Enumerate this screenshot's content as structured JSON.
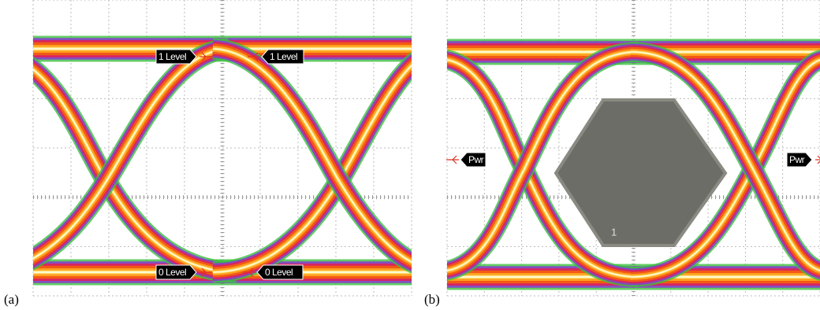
{
  "panels": [
    {
      "label": "(a)",
      "markers": [
        "1 Level",
        "1 Level",
        "0 Level",
        "0 Level"
      ]
    },
    {
      "label": "(b)",
      "markers": [
        "Pwr",
        "Pwr"
      ],
      "mask_label": "1"
    }
  ]
}
